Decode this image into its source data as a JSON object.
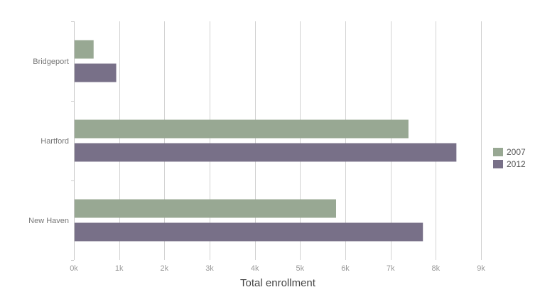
{
  "chart_data": {
    "type": "bar",
    "orientation": "horizontal",
    "categories": [
      "Bridgeport",
      "Hartford",
      "New Haven"
    ],
    "series": [
      {
        "name": "2007",
        "values": [
          420,
          7380,
          5780
        ],
        "color": "#98a893"
      },
      {
        "name": "2012",
        "values": [
          920,
          8440,
          7700
        ],
        "color": "#787088"
      }
    ],
    "xlabel": "Total enrollment",
    "ylabel": "",
    "xlim": [
      0,
      9000
    ],
    "xticks": [
      0,
      1000,
      2000,
      3000,
      4000,
      5000,
      6000,
      7000,
      8000,
      9000
    ],
    "xtick_labels": [
      "0k",
      "1k",
      "2k",
      "3k",
      "4k",
      "5k",
      "6k",
      "7k",
      "8k",
      "9k"
    ],
    "grid": "vertical",
    "legend_position": "right"
  }
}
